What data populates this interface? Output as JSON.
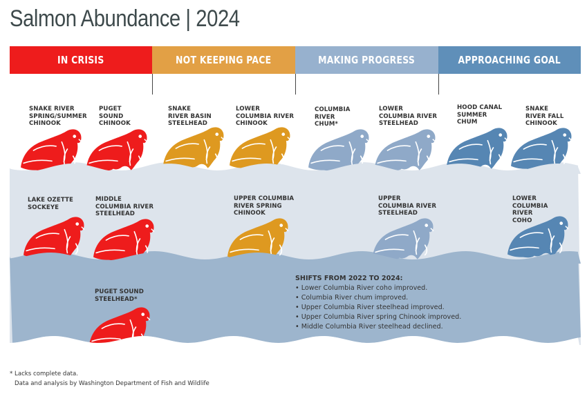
{
  "title": "Salmon Abundance | 2024",
  "categories": [
    {
      "label": "IN CRISIS",
      "color": "#ee1c1c"
    },
    {
      "label": "NOT KEEPING PACE",
      "color": "#e2a045"
    },
    {
      "label": "MAKING PROGRESS",
      "color": "#97b1ce"
    },
    {
      "label": "APPROACHING GOAL",
      "color": "#5f8fb9"
    }
  ],
  "fish_colors": {
    "crisis": "#ee1c1c",
    "pace": "#de9920",
    "progress": "#8fa9c8",
    "goal": "#5686b3"
  },
  "water_colors": {
    "upper": "#dde4ec",
    "lower": "#9db5cd"
  },
  "species": [
    {
      "label": "SNAKE RIVER\nSPRING/SUMMER\nCHINOOK",
      "status": "crisis"
    },
    {
      "label": "PUGET\nSOUND\nCHINOOK",
      "status": "crisis"
    },
    {
      "label": "LAKE OZETTE\nSOCKEYE",
      "status": "crisis"
    },
    {
      "label": "MIDDLE\nCOLUMBIA RIVER\nSTEELHEAD",
      "status": "crisis"
    },
    {
      "label": "PUGET SOUND\nSTEELHEAD*",
      "status": "crisis"
    },
    {
      "label": "SNAKE\nRIVER BASIN\nSTEELHEAD",
      "status": "pace"
    },
    {
      "label": "LOWER\nCOLUMBIA RIVER\nCHINOOK",
      "status": "pace"
    },
    {
      "label": "UPPER COLUMBIA\nRIVER SPRING\nCHINOOK",
      "status": "pace"
    },
    {
      "label": "COLUMBIA\nRIVER\nCHUM*",
      "status": "progress"
    },
    {
      "label": "LOWER\nCOLUMBIA RIVER\nSTEELHEAD",
      "status": "progress"
    },
    {
      "label": "UPPER\nCOLUMBIA RIVER\nSTEELHEAD",
      "status": "progress"
    },
    {
      "label": "HOOD CANAL\nSUMMER\nCHUM",
      "status": "goal"
    },
    {
      "label": "SNAKE\nRIVER FALL\nCHINOOK",
      "status": "goal"
    },
    {
      "label": "LOWER\nCOLUMBIA\nRIVER\nCOHO",
      "status": "goal"
    }
  ],
  "shifts": {
    "title": "SHIFTS FROM 2022 TO 2024:",
    "items": [
      "Lower Columbia River coho improved.",
      "Columbia River chum improved.",
      "Upper Columbia River steelhead improved.",
      "Upper Columbia River spring Chinook improved.",
      "Middle Columbia River steelhead declined."
    ]
  },
  "footnotes": [
    "* Lacks complete data.",
    "Data and analysis by Washington Department of Fish and Wildlife"
  ]
}
